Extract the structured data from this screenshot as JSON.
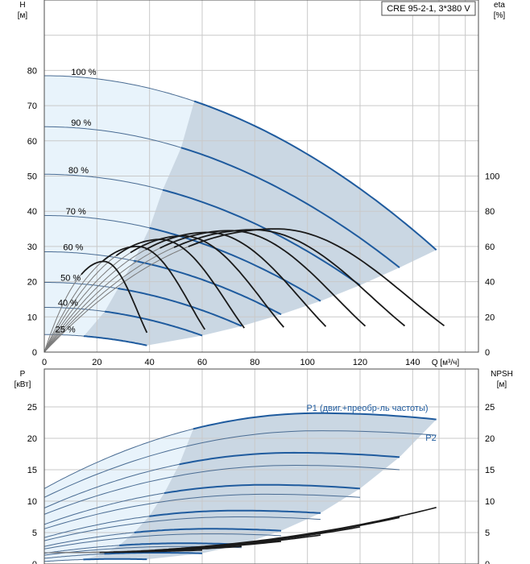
{
  "chart_data": [
    {
      "type": "line",
      "title": "CRE 95-2-1, 3*380 V",
      "left_axis": {
        "label_line1": "H",
        "label_line2": "[м]",
        "ticks": [
          0,
          10,
          20,
          30,
          40,
          50,
          60,
          70,
          80
        ],
        "ylim": [
          0,
          100
        ]
      },
      "right_axis": {
        "label_line1": "eta",
        "label_line2": "[%]",
        "ticks": [
          0,
          20,
          40,
          60,
          80,
          100
        ],
        "ylim": [
          0,
          100
        ]
      },
      "x_axis": {
        "label": "Q [м³/ч]",
        "ticks": [
          0,
          20,
          40,
          60,
          80,
          100,
          120,
          140
        ],
        "xlim": [
          0,
          165
        ]
      },
      "grid": true,
      "speed_curves": [
        {
          "label": "100 %",
          "qmax": 149,
          "h0": 78.5,
          "h_end": 29,
          "thick_from": 57
        },
        {
          "label": "90 %",
          "qmax": 135,
          "h0": 64,
          "h_end": 24,
          "thick_from": 52
        },
        {
          "label": "80 %",
          "qmax": 120,
          "h0": 50.5,
          "h_end": 19,
          "thick_from": 45
        },
        {
          "label": "70 %",
          "qmax": 105,
          "h0": 38.8,
          "h_end": 14.5,
          "thick_from": 40
        },
        {
          "label": "60 %",
          "qmax": 90,
          "h0": 28.5,
          "h_end": 10.7,
          "thick_from": 34
        },
        {
          "label": "50 %",
          "qmax": 75,
          "h0": 19.8,
          "h_end": 7.4,
          "thick_from": 28
        },
        {
          "label": "40 %",
          "qmax": 60,
          "h0": 12.7,
          "h_end": 4.7,
          "thick_from": 23
        },
        {
          "label": "25 %",
          "qmax": 39,
          "h0": 5,
          "h_end": 1.9,
          "thick_from": 15
        }
      ],
      "efficiency_curves": [
        {
          "qmax": 152,
          "peak": 70
        },
        {
          "qmax": 137,
          "peak": 69.5
        },
        {
          "qmax": 122,
          "peak": 69
        },
        {
          "qmax": 107,
          "peak": 68
        },
        {
          "qmax": 91,
          "peak": 66
        },
        {
          "qmax": 76,
          "peak": 64
        },
        {
          "qmax": 61,
          "peak": 60
        },
        {
          "qmax": 39,
          "peak": 51.5
        }
      ]
    },
    {
      "type": "line",
      "left_axis": {
        "label_line1": "P",
        "label_line2": "[кВт]",
        "ticks": [
          0,
          5,
          10,
          15,
          20,
          25
        ],
        "ylim": [
          0,
          30
        ]
      },
      "right_axis": {
        "label_line1": "NPSH",
        "label_line2": "[м]",
        "ticks": [
          0,
          5,
          10,
          15,
          20,
          25
        ],
        "ylim": [
          0,
          30
        ]
      },
      "x_axis": {
        "ticks": [],
        "xlim": [
          0,
          165
        ]
      },
      "grid": true,
      "series_labels": {
        "p1": "P1 (двиг.+преобр-ль частоты)",
        "p2": "P2"
      },
      "p1_curves": [
        {
          "qmax": 149,
          "p0": 12,
          "peak": 24,
          "end": 23
        },
        {
          "qmax": 135,
          "p0": 8.9,
          "peak": 17.7,
          "end": 17
        },
        {
          "qmax": 120,
          "p0": 6.3,
          "peak": 12.6,
          "end": 12
        },
        {
          "qmax": 105,
          "p0": 4.2,
          "peak": 8.5,
          "end": 8.1
        },
        {
          "qmax": 90,
          "p0": 2.8,
          "peak": 5.6,
          "end": 5.3
        },
        {
          "qmax": 75,
          "p0": 1.7,
          "peak": 3.3,
          "end": 3.1
        },
        {
          "qmax": 60,
          "p0": 0.9,
          "peak": 1.8,
          "end": 1.7
        },
        {
          "qmax": 39,
          "p0": 0.4,
          "peak": 0.8,
          "end": 0.75
        }
      ],
      "p2_curves": [
        {
          "qmax": 149,
          "p0": 10.6,
          "peak": 21.2,
          "end": 20.5
        },
        {
          "qmax": 135,
          "p0": 7.9,
          "peak": 15.7,
          "end": 15
        },
        {
          "qmax": 120,
          "p0": 5.6,
          "peak": 11.1,
          "end": 10.6
        },
        {
          "qmax": 105,
          "p0": 3.7,
          "peak": 7.5,
          "end": 7.1
        },
        {
          "qmax": 90,
          "p0": 2.4,
          "peak": 4.8,
          "end": 4.5
        },
        {
          "qmax": 75,
          "p0": 1.4,
          "peak": 2.8,
          "end": 2.6
        }
      ],
      "npsh_curves": [
        {
          "qmax": 149,
          "n0": 1.8,
          "end": 9
        },
        {
          "qmax": 135,
          "n0": 1.8,
          "end": 7.4
        },
        {
          "qmax": 120,
          "n0": 1.8,
          "end": 5.9
        },
        {
          "qmax": 105,
          "n0": 1.8,
          "end": 4.6
        },
        {
          "qmax": 90,
          "n0": 1.8,
          "end": 3.6
        },
        {
          "qmax": 75,
          "n0": 1.8,
          "end": 2.8
        },
        {
          "qmax": 60,
          "n0": 1.8,
          "end": 2.2
        }
      ]
    }
  ],
  "colors": {
    "curve_blue": "#1f5b9e",
    "thin_blue": "#4a6c93",
    "region_light": "#e8f3fb",
    "region_dark": "#cad7e3",
    "eff_thin": "#7a7a7a",
    "eff_thick": "#1a1a1a",
    "grid": "#c9c9c9"
  }
}
